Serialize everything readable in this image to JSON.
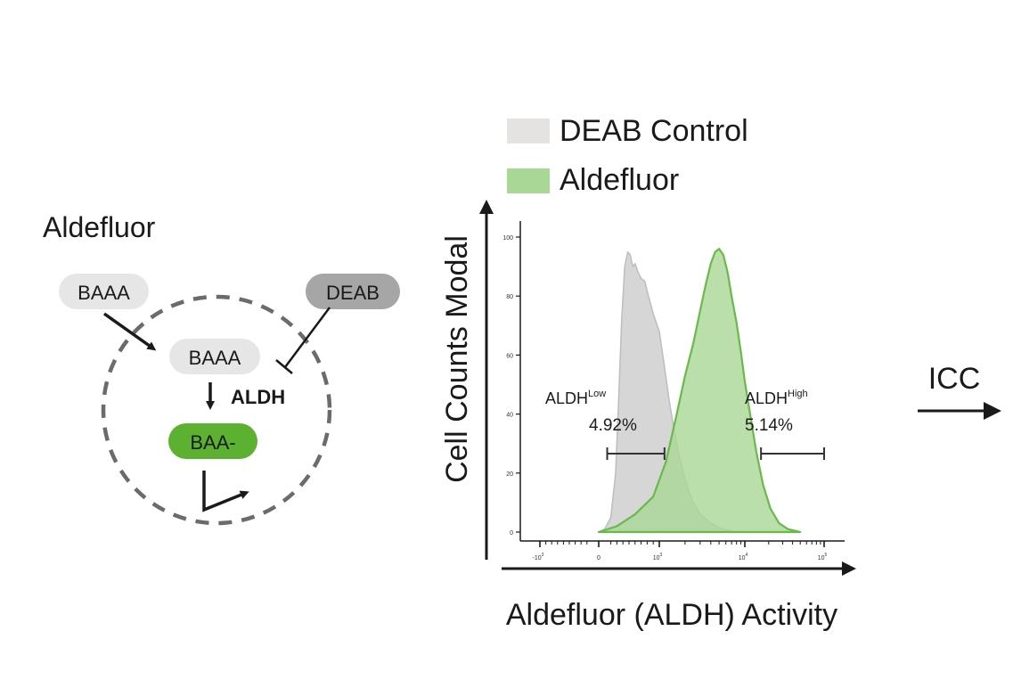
{
  "schematic": {
    "title": "Aldefluor",
    "substrate_outside": "BAAA",
    "inhibitor": "DEAB",
    "substrate_inside": "BAAA",
    "enzyme": "ALDH",
    "product": "BAA-",
    "colors": {
      "pill_light": "#e6e6e6",
      "pill_dark": "#a6a6a6",
      "product_green": "#5cb130",
      "cell_outline": "#6b6b6b"
    }
  },
  "legend": {
    "items": [
      {
        "label": "DEAB Control",
        "color": "#e4e3e1"
      },
      {
        "label": "Aldefluor",
        "color": "#a9d795"
      }
    ]
  },
  "chart_data": {
    "type": "area",
    "title": "",
    "xlabel": "Aldefluor (ALDH) Activity",
    "ylabel": "Cell Counts Modal",
    "x_scale": "log (biexponential)",
    "x_ticks": [
      {
        "value": -1000,
        "label": "-10",
        "exp": "3"
      },
      {
        "value": 0,
        "label": "0",
        "exp": ""
      },
      {
        "value": 1000,
        "label": "10",
        "exp": "3"
      },
      {
        "value": 10000,
        "label": "10",
        "exp": "4"
      },
      {
        "value": 100000,
        "label": "10",
        "exp": "5"
      }
    ],
    "y_ticks": [
      0,
      20,
      40,
      60,
      80,
      100
    ],
    "ylim": [
      0,
      100
    ],
    "series": [
      {
        "name": "DEAB Control",
        "color": "#d6d6d6",
        "stroke": "#bdbdbd",
        "points": [
          [
            0,
            0
          ],
          [
            100,
            1
          ],
          [
            200,
            5
          ],
          [
            280,
            20
          ],
          [
            330,
            45
          ],
          [
            380,
            72
          ],
          [
            430,
            90
          ],
          [
            480,
            95
          ],
          [
            520,
            94
          ],
          [
            560,
            90
          ],
          [
            600,
            91
          ],
          [
            650,
            88
          ],
          [
            700,
            86
          ],
          [
            760,
            85
          ],
          [
            820,
            80
          ],
          [
            900,
            74
          ],
          [
            1000,
            68
          ],
          [
            1150,
            56
          ],
          [
            1300,
            45
          ],
          [
            1500,
            34
          ],
          [
            1700,
            26
          ],
          [
            2000,
            18
          ],
          [
            2400,
            11
          ],
          [
            3000,
            6
          ],
          [
            4000,
            3
          ],
          [
            5500,
            1
          ],
          [
            8000,
            0
          ]
        ]
      },
      {
        "name": "Aldefluor",
        "color": "#a9d795",
        "stroke": "#6ab94a",
        "points": [
          [
            0,
            0
          ],
          [
            300,
            2
          ],
          [
            600,
            6
          ],
          [
            900,
            12
          ],
          [
            1200,
            24
          ],
          [
            1600,
            40
          ],
          [
            2000,
            53
          ],
          [
            2500,
            64
          ],
          [
            3000,
            75
          ],
          [
            3500,
            84
          ],
          [
            4000,
            91
          ],
          [
            4500,
            95
          ],
          [
            5000,
            96
          ],
          [
            5600,
            94
          ],
          [
            6300,
            88
          ],
          [
            7000,
            80
          ],
          [
            8000,
            71
          ],
          [
            9000,
            61
          ],
          [
            10000,
            51
          ],
          [
            12000,
            38
          ],
          [
            14000,
            27
          ],
          [
            17000,
            16
          ],
          [
            21000,
            8
          ],
          [
            27000,
            3
          ],
          [
            35000,
            1
          ],
          [
            50000,
            0
          ]
        ]
      }
    ],
    "gates": [
      {
        "label": "ALDH",
        "superscript": "Low",
        "percent": "4.92%",
        "x_from": 140,
        "x_to": 1150
      },
      {
        "label": "ALDH",
        "superscript": "High",
        "percent": "5.14%",
        "x_from": 16000,
        "x_to": 100000
      }
    ]
  },
  "next_step": {
    "label": "ICC"
  }
}
